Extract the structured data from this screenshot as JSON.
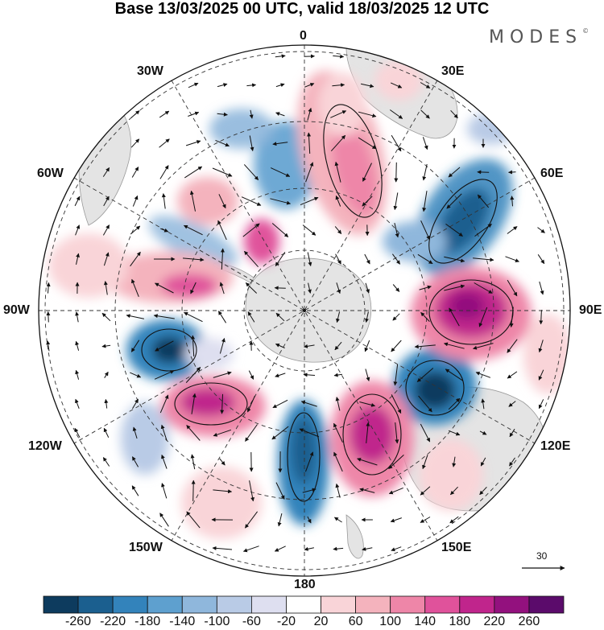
{
  "title": "Base 13/03/2025 00 UTC, valid 18/03/2025 12 UTC",
  "logo": {
    "text": "MODES",
    "mark": "©"
  },
  "longitude_labels": [
    "0",
    "30E",
    "60E",
    "90E",
    "120E",
    "150E",
    "180",
    "150W",
    "120W",
    "90W",
    "60W",
    "30W"
  ],
  "colorbar": {
    "colors": [
      "#0d3b5e",
      "#1b5f8f",
      "#3383bb",
      "#5ea0cf",
      "#8fb7dc",
      "#b9cbe6",
      "#dedff0",
      "#ffffff",
      "#f9d4d8",
      "#f4b3bd",
      "#ee86a8",
      "#e0529b",
      "#c0258c",
      "#93117e",
      "#5b0b6b"
    ],
    "labels": [
      "-260",
      "-220",
      "-180",
      "-140",
      "-100",
      "-60",
      "-20",
      "20",
      "60",
      "100",
      "140",
      "180",
      "220",
      "260"
    ]
  },
  "reference_vector": {
    "label": "30"
  }
}
